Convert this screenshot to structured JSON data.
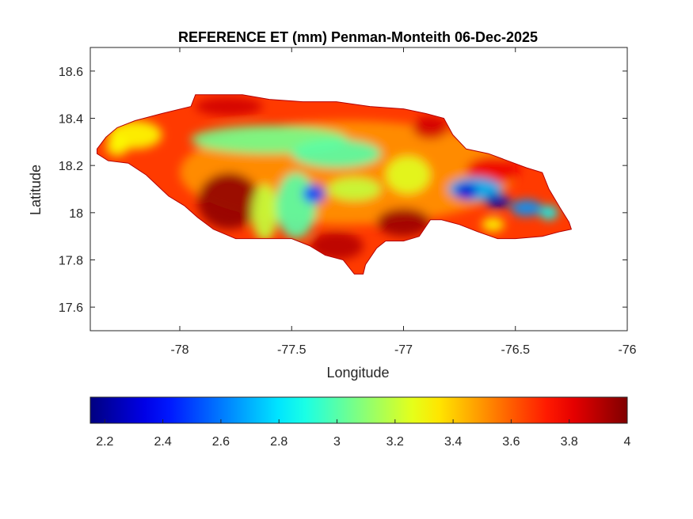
{
  "chart_data": {
    "type": "heatmap",
    "title": "REFERENCE ET (mm) Penman-Monteith 06-Dec-2025",
    "xlabel": "Longitude",
    "ylabel": "Latitude",
    "xlim": [
      -78.4,
      -76
    ],
    "ylim": [
      17.5,
      18.7
    ],
    "x_ticks": [
      -78,
      -77.5,
      -77,
      -76.5,
      -76
    ],
    "x_tick_labels": [
      "-78",
      "-77.5",
      "-77",
      "-76.5",
      "-76"
    ],
    "y_ticks": [
      17.6,
      17.8,
      18,
      18.2,
      18.4,
      18.6
    ],
    "y_tick_labels": [
      "17.6",
      "17.8",
      "18",
      "18.2",
      "18.4",
      "18.6"
    ],
    "grid": false,
    "colormap": "jet",
    "colorbar": {
      "location": "bottom",
      "range": [
        2.15,
        4
      ],
      "ticks": [
        2.2,
        2.4,
        2.6,
        2.8,
        3,
        3.2,
        3.4,
        3.6,
        3.8,
        4
      ],
      "tick_labels": [
        "2.2",
        "2.4",
        "2.6",
        "2.8",
        "3",
        "3.2",
        "3.4",
        "3.6",
        "3.8",
        "4"
      ]
    },
    "region_outline": [
      [
        -78.37,
        18.27
      ],
      [
        -78.33,
        18.32
      ],
      [
        -78.28,
        18.36
      ],
      [
        -78.2,
        18.39
      ],
      [
        -78.08,
        18.42
      ],
      [
        -77.95,
        18.45
      ],
      [
        -77.93,
        18.5
      ],
      [
        -77.72,
        18.5
      ],
      [
        -77.6,
        18.48
      ],
      [
        -77.45,
        18.47
      ],
      [
        -77.3,
        18.47
      ],
      [
        -77.15,
        18.45
      ],
      [
        -77.0,
        18.44
      ],
      [
        -76.9,
        18.42
      ],
      [
        -76.82,
        18.4
      ],
      [
        -76.78,
        18.33
      ],
      [
        -76.72,
        18.27
      ],
      [
        -76.62,
        18.25
      ],
      [
        -76.45,
        18.19
      ],
      [
        -76.38,
        18.17
      ],
      [
        -76.35,
        18.1
      ],
      [
        -76.3,
        18.02
      ],
      [
        -76.26,
        17.96
      ],
      [
        -76.25,
        17.93
      ],
      [
        -76.3,
        17.92
      ],
      [
        -76.38,
        17.9
      ],
      [
        -76.5,
        17.89
      ],
      [
        -76.58,
        17.89
      ],
      [
        -76.67,
        17.92
      ],
      [
        -76.75,
        17.95
      ],
      [
        -76.83,
        17.97
      ],
      [
        -76.88,
        17.97
      ],
      [
        -76.93,
        17.9
      ],
      [
        -77.0,
        17.88
      ],
      [
        -77.08,
        17.88
      ],
      [
        -77.12,
        17.85
      ],
      [
        -77.17,
        17.78
      ],
      [
        -77.18,
        17.74
      ],
      [
        -77.22,
        17.74
      ],
      [
        -77.27,
        17.8
      ],
      [
        -77.35,
        17.82
      ],
      [
        -77.42,
        17.86
      ],
      [
        -77.5,
        17.89
      ],
      [
        -77.6,
        17.89
      ],
      [
        -77.75,
        17.89
      ],
      [
        -77.85,
        17.93
      ],
      [
        -77.92,
        17.98
      ],
      [
        -77.98,
        18.03
      ],
      [
        -78.05,
        18.07
      ],
      [
        -78.15,
        18.16
      ],
      [
        -78.23,
        18.21
      ],
      [
        -78.32,
        18.22
      ],
      [
        -78.37,
        18.25
      ]
    ],
    "value_patches": [
      {
        "lon": -77.25,
        "lat": 18.17,
        "rx": 0.75,
        "ry": 0.22,
        "value": 3.5
      },
      {
        "lon": -77.78,
        "lat": 18.05,
        "rx": 0.14,
        "ry": 0.12,
        "value": 3.97
      },
      {
        "lon": -77.0,
        "lat": 17.96,
        "rx": 0.12,
        "ry": 0.06,
        "value": 3.95
      },
      {
        "lon": -77.3,
        "lat": 17.86,
        "rx": 0.12,
        "ry": 0.06,
        "value": 3.9
      },
      {
        "lon": -77.78,
        "lat": 18.45,
        "rx": 0.15,
        "ry": 0.04,
        "value": 3.85
      },
      {
        "lon": -76.88,
        "lat": 18.36,
        "rx": 0.08,
        "ry": 0.05,
        "value": 3.85
      },
      {
        "lon": -76.6,
        "lat": 18.18,
        "rx": 0.12,
        "ry": 0.06,
        "value": 3.8
      },
      {
        "lon": -78.2,
        "lat": 18.33,
        "rx": 0.12,
        "ry": 0.06,
        "value": 3.3
      },
      {
        "lon": -77.6,
        "lat": 18.31,
        "rx": 0.35,
        "ry": 0.06,
        "value": 3.05
      },
      {
        "lon": -77.3,
        "lat": 18.25,
        "rx": 0.2,
        "ry": 0.06,
        "value": 3.0
      },
      {
        "lon": -77.62,
        "lat": 18.0,
        "rx": 0.06,
        "ry": 0.12,
        "value": 3.2
      },
      {
        "lon": -77.48,
        "lat": 18.03,
        "rx": 0.09,
        "ry": 0.14,
        "value": 3.0
      },
      {
        "lon": -77.4,
        "lat": 18.08,
        "rx": 0.05,
        "ry": 0.04,
        "value": 2.5
      },
      {
        "lon": -77.22,
        "lat": 18.1,
        "rx": 0.12,
        "ry": 0.05,
        "value": 3.2
      },
      {
        "lon": -76.98,
        "lat": 18.16,
        "rx": 0.1,
        "ry": 0.08,
        "value": 3.25
      },
      {
        "lon": -76.68,
        "lat": 18.1,
        "rx": 0.12,
        "ry": 0.05,
        "value": 2.7
      },
      {
        "lon": -76.72,
        "lat": 18.09,
        "rx": 0.05,
        "ry": 0.035,
        "value": 2.3
      },
      {
        "lon": -76.58,
        "lat": 18.05,
        "rx": 0.06,
        "ry": 0.03,
        "value": 2.25
      },
      {
        "lon": -76.45,
        "lat": 18.02,
        "rx": 0.07,
        "ry": 0.035,
        "value": 2.65
      },
      {
        "lon": -76.35,
        "lat": 18.0,
        "rx": 0.04,
        "ry": 0.03,
        "value": 2.85
      },
      {
        "lon": -76.6,
        "lat": 17.95,
        "rx": 0.05,
        "ry": 0.03,
        "value": 3.3
      },
      {
        "lon": -78.28,
        "lat": 18.28,
        "rx": 0.05,
        "ry": 0.04,
        "value": 3.3
      }
    ]
  }
}
